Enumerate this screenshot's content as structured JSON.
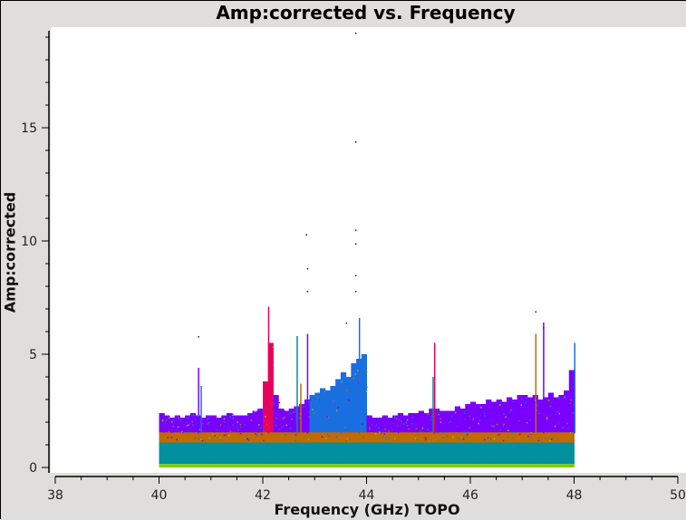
{
  "chart_data": {
    "type": "scatter",
    "title": "Amp:corrected vs. Frequency",
    "xlabel": "Frequency (GHz) TOPO",
    "ylabel": "Amp:corrected",
    "xlim": [
      38,
      50
    ],
    "ylim": [
      0,
      19.2
    ],
    "x_ticks": [
      38,
      40,
      42,
      44,
      46,
      48,
      50
    ],
    "y_ticks": [
      0,
      5,
      10,
      15
    ],
    "grid": false,
    "legend": "none",
    "colors": {
      "base": "#00909f",
      "low": "#7fcc00",
      "mid": "#c06a00",
      "upper": "#7a00ff",
      "blue": "#1a6fe0",
      "pink": "#e8005a"
    },
    "envelope": {
      "x_start": 40.0,
      "bin_width": 0.1,
      "max_amp": [
        2.4,
        2.3,
        2.2,
        2.3,
        2.2,
        2.3,
        2.4,
        2.3,
        2.2,
        2.3,
        2.3,
        2.2,
        2.3,
        2.4,
        2.3,
        2.3,
        2.3,
        2.4,
        2.5,
        2.6,
        3.8,
        5.5,
        3.2,
        2.6,
        2.5,
        2.6,
        2.7,
        2.8,
        3.0,
        3.2,
        3.3,
        3.5,
        3.4,
        3.6,
        3.9,
        4.2,
        4.0,
        4.6,
        4.8,
        5.0,
        2.3,
        2.2,
        2.2,
        2.3,
        2.2,
        2.3,
        2.4,
        2.3,
        2.4,
        2.4,
        2.5,
        2.4,
        2.6,
        2.6,
        2.5,
        2.5,
        2.5,
        2.7,
        2.6,
        2.8,
        2.9,
        2.8,
        2.8,
        3.0,
        2.9,
        3.0,
        2.9,
        3.1,
        3.0,
        3.2,
        3.2,
        3.1,
        3.2,
        3.0,
        3.1,
        3.3,
        3.1,
        3.2,
        3.4,
        4.3
      ]
    },
    "spikes": [
      [
        40.75,
        4.4
      ],
      [
        40.8,
        3.6
      ],
      [
        42.1,
        7.1
      ],
      [
        42.65,
        5.8
      ],
      [
        42.72,
        3.7
      ],
      [
        42.85,
        5.9
      ],
      [
        43.85,
        6.6
      ],
      [
        45.3,
        5.5
      ],
      [
        45.27,
        4.0
      ],
      [
        47.25,
        5.9
      ],
      [
        47.4,
        6.4
      ],
      [
        48.0,
        5.5
      ]
    ],
    "outliers": [
      [
        40.75,
        5.8
      ],
      [
        42.83,
        10.3
      ],
      [
        42.85,
        8.8
      ],
      [
        42.85,
        7.8
      ],
      [
        43.78,
        19.2
      ],
      [
        43.78,
        14.4
      ],
      [
        43.78,
        10.5
      ],
      [
        43.78,
        9.9
      ],
      [
        43.78,
        8.5
      ],
      [
        43.78,
        7.8
      ],
      [
        43.6,
        6.4
      ],
      [
        47.4,
        6.2
      ],
      [
        47.25,
        6.9
      ]
    ]
  }
}
